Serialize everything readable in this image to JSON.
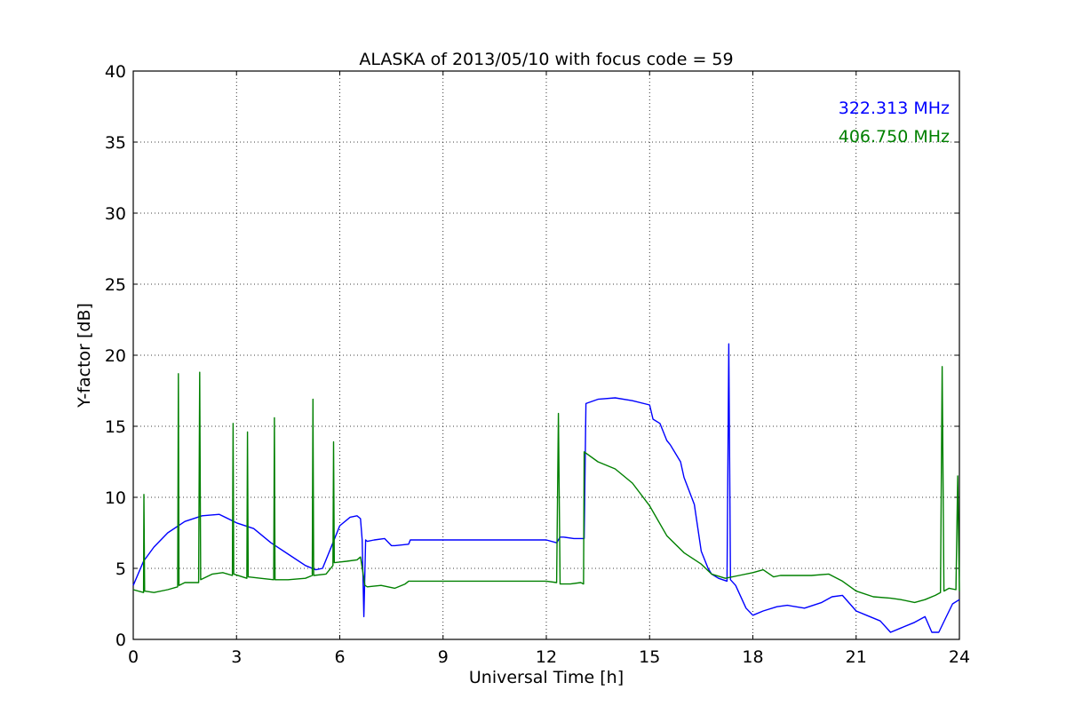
{
  "chart_data": {
    "type": "line",
    "title": "ALASKA of 2013/05/10 with focus code = 59",
    "xlabel": "Universal Time [h]",
    "ylabel": "Y-factor [dB]",
    "xlim": [
      0,
      24
    ],
    "ylim": [
      0,
      40
    ],
    "xticks": [
      "0",
      "3",
      "6",
      "9",
      "12",
      "15",
      "18",
      "21",
      "24"
    ],
    "yticks": [
      "0",
      "5",
      "10",
      "15",
      "20",
      "25",
      "30",
      "35",
      "40"
    ],
    "grid": true,
    "legend_position": "top-right",
    "series": [
      {
        "name": "322.313 MHz",
        "color": "#0000ff",
        "x": [
          0,
          0.3,
          0.6,
          1.0,
          1.5,
          2.0,
          2.5,
          3.0,
          3.5,
          4.0,
          4.5,
          5.0,
          5.3,
          5.5,
          5.7,
          6.0,
          6.3,
          6.5,
          6.6,
          6.65,
          6.7,
          6.75,
          6.8,
          7.0,
          7.3,
          7.5,
          7.6,
          8.0,
          8.05,
          11.9,
          12.0,
          12.3,
          12.4,
          12.5,
          12.8,
          13.1,
          13.15,
          13.5,
          14.0,
          14.5,
          15.0,
          15.1,
          15.3,
          15.5,
          15.6,
          15.9,
          16.0,
          16.3,
          16.5,
          16.7,
          16.8,
          17.0,
          17.25,
          17.3,
          17.35,
          17.5,
          17.8,
          18.0,
          18.3,
          18.7,
          19.0,
          19.5,
          20.0,
          20.3,
          20.6,
          21.0,
          21.3,
          21.7,
          22.0,
          22.3,
          22.7,
          23.0,
          23.2,
          23.4,
          23.6,
          23.8,
          24.0
        ],
        "y": [
          3.8,
          5.5,
          6.5,
          7.5,
          8.3,
          8.7,
          8.8,
          8.2,
          7.8,
          6.8,
          6.0,
          5.2,
          4.9,
          5.0,
          6.2,
          8.0,
          8.6,
          8.7,
          8.5,
          7.0,
          1.6,
          7.0,
          6.9,
          7.0,
          7.1,
          6.6,
          6.6,
          6.7,
          7.0,
          7.0,
          7.0,
          6.8,
          7.2,
          7.2,
          7.1,
          7.1,
          16.6,
          16.9,
          17.0,
          16.8,
          16.5,
          15.5,
          15.2,
          14.0,
          13.7,
          12.5,
          11.4,
          9.5,
          6.2,
          5.0,
          4.6,
          4.3,
          4.1,
          20.8,
          4.2,
          3.8,
          2.2,
          1.7,
          2.0,
          2.3,
          2.4,
          2.2,
          2.6,
          3.0,
          3.1,
          2.0,
          1.7,
          1.3,
          0.5,
          0.8,
          1.2,
          1.6,
          0.5,
          0.5,
          1.5,
          2.5,
          2.8
        ]
      },
      {
        "name": "406.750 MHz",
        "color": "#008000",
        "x": [
          0,
          0.3,
          0.31,
          0.33,
          0.6,
          1.0,
          1.29,
          1.31,
          1.33,
          1.5,
          1.9,
          1.93,
          1.96,
          2.3,
          2.6,
          2.88,
          2.9,
          2.92,
          3.3,
          3.3,
          3.32,
          3.34,
          3.7,
          4.08,
          4.1,
          4.12,
          4.5,
          5.0,
          5.2,
          5.22,
          5.24,
          5.6,
          5.8,
          5.82,
          5.84,
          6.2,
          6.5,
          6.6,
          6.7,
          6.73,
          6.8,
          7.2,
          7.6,
          7.9,
          8.0,
          12.0,
          12.3,
          12.35,
          12.4,
          12.7,
          13.0,
          13.08,
          13.1,
          13.5,
          14.0,
          14.5,
          15.0,
          15.5,
          16.0,
          16.5,
          16.8,
          17.2,
          17.6,
          18.0,
          18.3,
          18.6,
          18.8,
          19.2,
          19.7,
          20.2,
          20.6,
          21.0,
          21.5,
          22.0,
          22.3,
          22.7,
          23.0,
          23.3,
          23.45,
          23.5,
          23.55,
          23.7,
          23.9,
          23.95,
          24.0
        ],
        "y": [
          3.5,
          3.3,
          10.2,
          3.4,
          3.3,
          3.5,
          3.7,
          18.7,
          3.8,
          4.0,
          4.0,
          18.8,
          4.2,
          4.6,
          4.7,
          4.5,
          15.2,
          4.6,
          4.3,
          4.5,
          14.6,
          4.4,
          4.3,
          4.2,
          15.6,
          4.2,
          4.2,
          4.3,
          4.5,
          16.9,
          4.5,
          4.6,
          5.2,
          13.9,
          5.4,
          5.5,
          5.6,
          5.8,
          4.3,
          3.8,
          3.7,
          3.8,
          3.6,
          3.9,
          4.1,
          4.1,
          4.0,
          15.9,
          3.9,
          3.9,
          4.0,
          3.9,
          13.2,
          12.5,
          12.0,
          11.0,
          9.4,
          7.3,
          6.1,
          5.3,
          4.6,
          4.3,
          4.5,
          4.7,
          4.9,
          4.4,
          4.5,
          4.5,
          4.5,
          4.6,
          4.1,
          3.4,
          3.0,
          2.9,
          2.8,
          2.6,
          2.8,
          3.1,
          3.3,
          19.2,
          3.4,
          3.6,
          3.5,
          11.5,
          3.4
        ]
      }
    ]
  }
}
